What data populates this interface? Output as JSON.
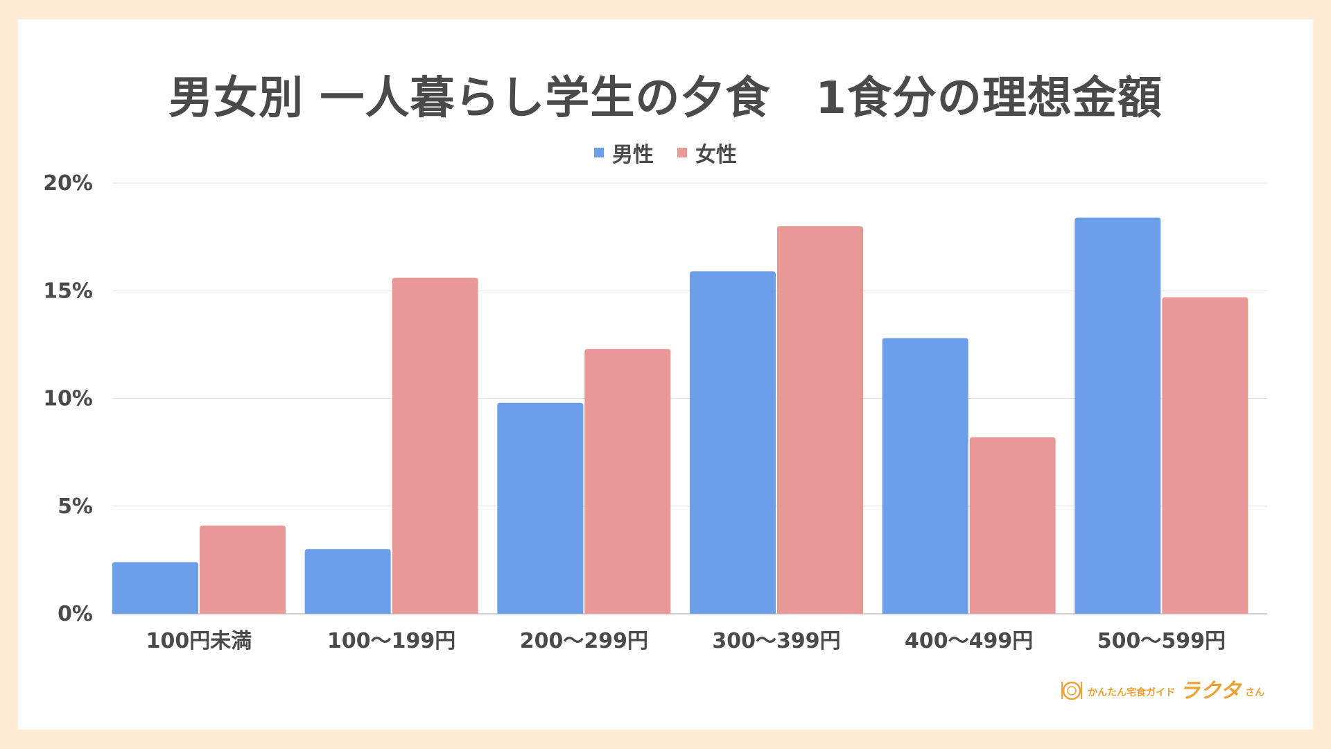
{
  "chart_data": {
    "type": "bar",
    "title": "男女別 一人暮らし学生の夕食　1食分の理想金額",
    "categories": [
      "100円未満",
      "100〜199円",
      "200〜299円",
      "300〜399円",
      "400〜499円",
      "500〜599円"
    ],
    "series": [
      {
        "name": "男性",
        "values": [
          2.4,
          3.0,
          9.8,
          15.9,
          12.8,
          18.4
        ],
        "color": "#6d9eea"
      },
      {
        "name": "女性",
        "values": [
          4.1,
          15.6,
          12.3,
          18.0,
          8.2,
          14.7
        ],
        "color": "#e99898"
      }
    ],
    "ylim": [
      0,
      20
    ],
    "yticks": [
      "0%",
      "5%",
      "10%",
      "15%",
      "20%"
    ],
    "ytick_values": [
      0,
      5,
      10,
      15,
      20
    ],
    "grid": true,
    "legend": "top-center",
    "xlabel": "",
    "ylabel": ""
  },
  "logo": {
    "subtitle": "かんたん宅食ガイド",
    "name": "ラクタ",
    "suffix": "さん"
  }
}
